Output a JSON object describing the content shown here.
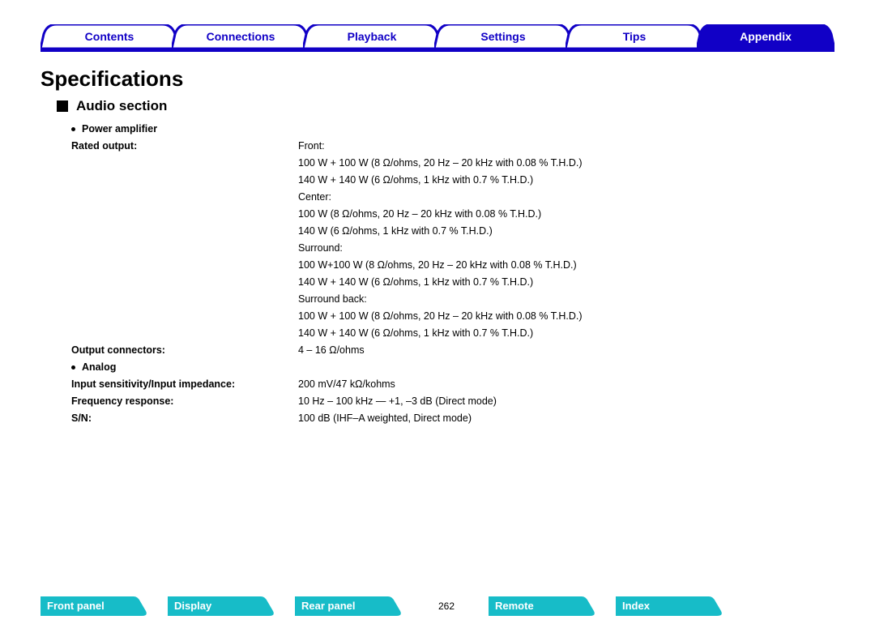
{
  "colors": {
    "brand_blue": "#1100c6",
    "accent_cyan": "#17bcc8",
    "text": "#000000",
    "bg": "#ffffff"
  },
  "top_nav": {
    "tabs": [
      {
        "label": "Contents",
        "active": false
      },
      {
        "label": "Connections",
        "active": false
      },
      {
        "label": "Playback",
        "active": false
      },
      {
        "label": "Settings",
        "active": false
      },
      {
        "label": "Tips",
        "active": false
      },
      {
        "label": "Appendix",
        "active": true
      }
    ]
  },
  "page_title": "Specifications",
  "section": {
    "title": "Audio section",
    "groups": [
      {
        "bullet": "Power amplifier",
        "rows": [
          {
            "label": "Rated output:",
            "values": [
              "Front:",
              "100 W + 100 W (8 Ω/ohms, 20 Hz – 20 kHz with 0.08 % T.H.D.)",
              "140 W + 140 W (6 Ω/ohms, 1 kHz with 0.7 % T.H.D.)",
              "Center:",
              "100 W (8 Ω/ohms, 20 Hz – 20 kHz with 0.08 % T.H.D.)",
              "140 W (6 Ω/ohms, 1 kHz with 0.7 % T.H.D.)",
              "Surround:",
              "100 W+100 W (8 Ω/ohms, 20 Hz – 20 kHz with 0.08 % T.H.D.)",
              "140 W + 140 W (6 Ω/ohms, 1 kHz with 0.7 % T.H.D.)",
              "Surround back:",
              "100 W + 100 W (8 Ω/ohms, 20 Hz – 20 kHz with 0.08 % T.H.D.)",
              "140 W + 140 W (6 Ω/ohms, 1 kHz with 0.7 % T.H.D.)"
            ]
          },
          {
            "label": "Output connectors:",
            "values": [
              "4 – 16 Ω/ohms"
            ]
          }
        ]
      },
      {
        "bullet": "Analog",
        "rows": [
          {
            "label": "Input sensitivity/Input impedance:",
            "values": [
              "200 mV/47 kΩ/kohms"
            ]
          },
          {
            "label": "Frequency response:",
            "values": [
              "10 Hz – 100 kHz — +1, –3 dB (Direct mode)"
            ]
          },
          {
            "label": "S/N:",
            "values": [
              "100 dB (IHF–A weighted, Direct mode)"
            ]
          }
        ]
      }
    ]
  },
  "bottom_nav": {
    "tabs_left": [
      "Front panel",
      "Display",
      "Rear panel"
    ],
    "page_number": "262",
    "tabs_right": [
      "Remote",
      "Index"
    ]
  }
}
